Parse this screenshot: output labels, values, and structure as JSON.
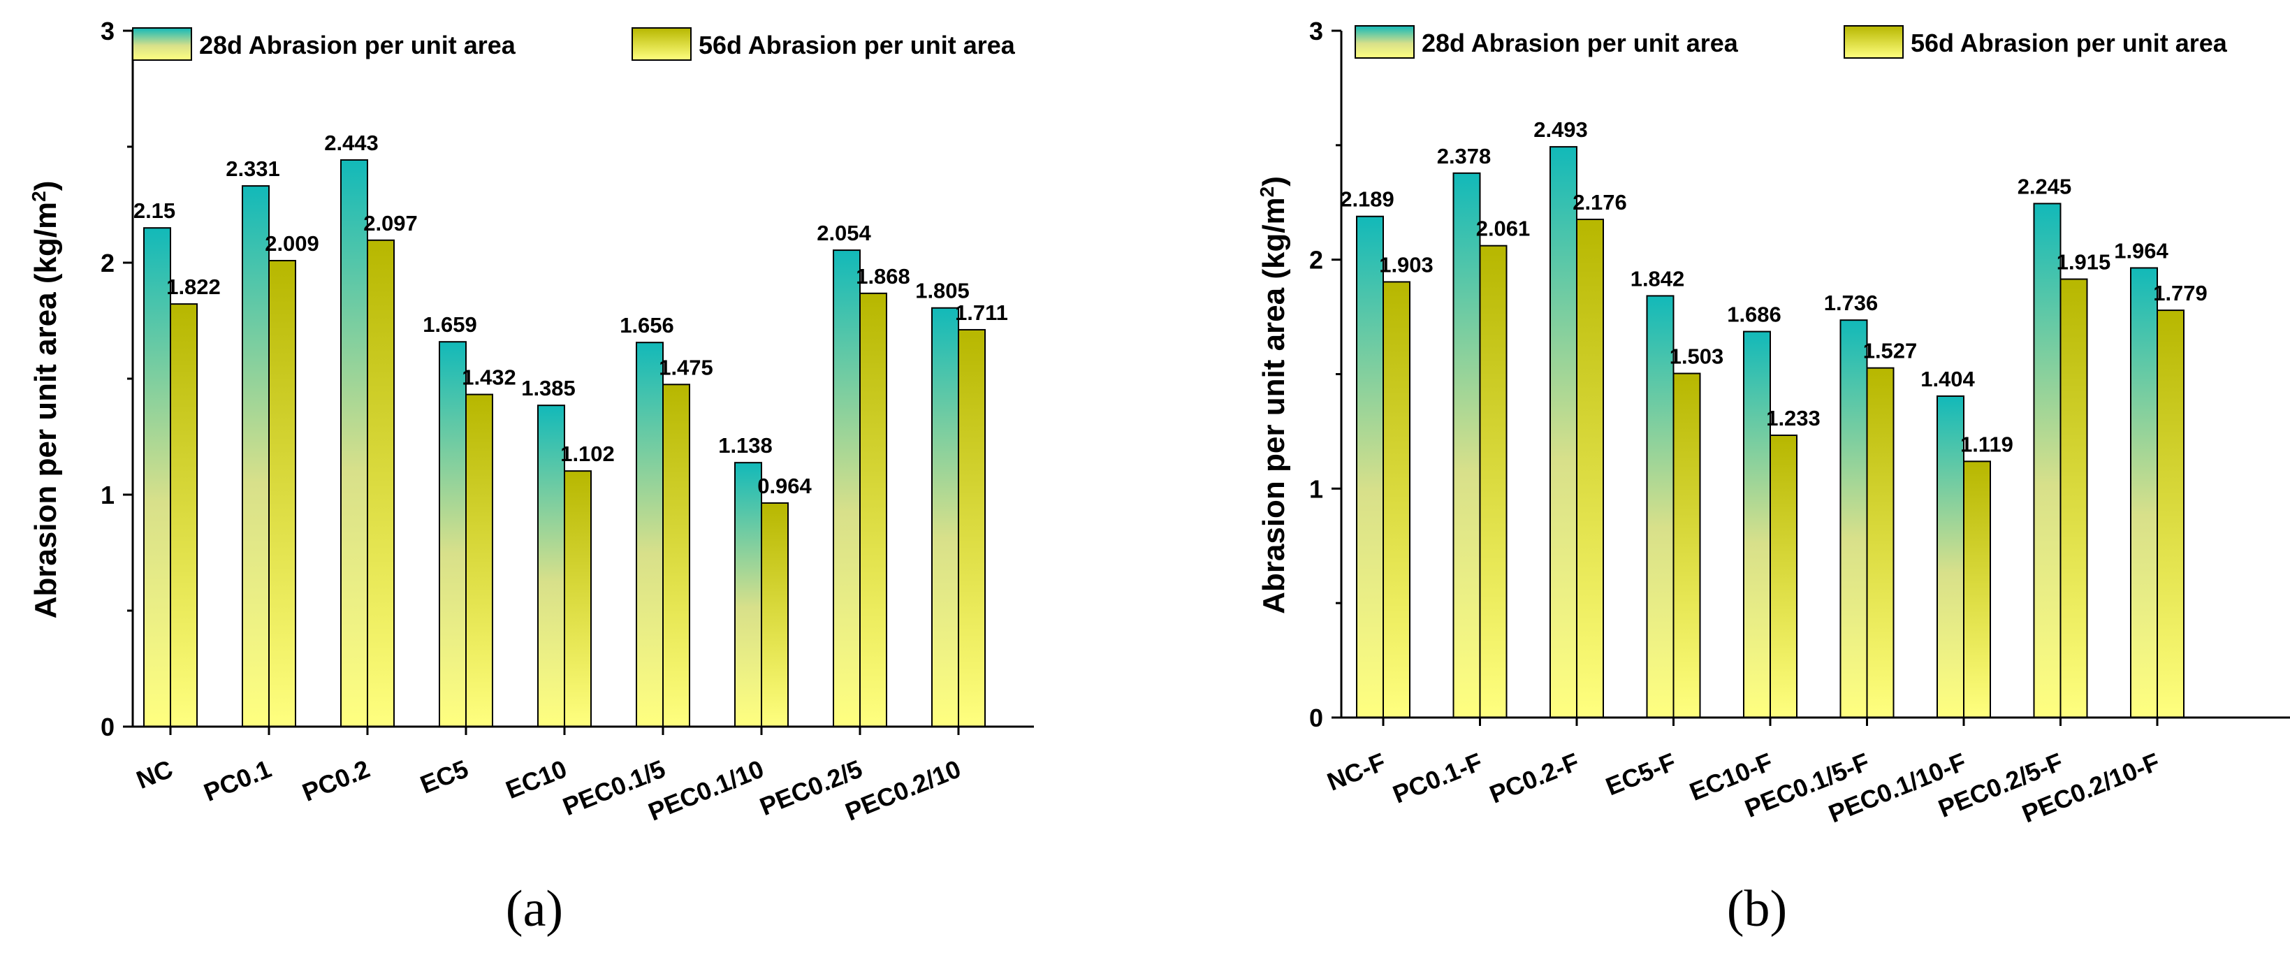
{
  "colors": {
    "series28_top": "#12b9b9",
    "series28_mid": "#d8e08a",
    "series28_bottom": "#ffff80",
    "series56_top": "#b7b700",
    "series56_bottom": "#ffff80",
    "axis": "#000000"
  },
  "chart_data": [
    {
      "type": "bar",
      "panel_label": "(a)",
      "ylabel": "Abrasion per unit area (kg/m",
      "ylabel_sup": "2",
      "ylabel_close": ")",
      "ylim": [
        0,
        3
      ],
      "yticks": [
        "0",
        "1",
        "2",
        "3"
      ],
      "legend_position": "top",
      "categories": [
        "NC",
        "PC0.1",
        "PC0.2",
        "EC5",
        "EC10",
        "PEC0.1/5",
        "PEC0.1/10",
        "PEC0.2/5",
        "PEC0.2/10"
      ],
      "series": [
        {
          "name": "28d Abrasion per unit area",
          "values": [
            2.15,
            2.331,
            2.443,
            1.659,
            1.385,
            1.656,
            1.138,
            2.054,
            1.805
          ],
          "labels": [
            "2.15",
            "2.331",
            "2.443",
            "1.659",
            "1.385",
            "1.656",
            "1.138",
            "2.054",
            "1.805"
          ]
        },
        {
          "name": "56d Abrasion per unit area",
          "values": [
            1.822,
            2.009,
            2.097,
            1.432,
            1.102,
            1.475,
            0.964,
            1.868,
            1.711
          ],
          "labels": [
            "1.822",
            "2.009",
            "2.097",
            "1.432",
            "1.102",
            "1.475",
            "0.964",
            "1.868",
            "1.711"
          ]
        }
      ]
    },
    {
      "type": "bar",
      "panel_label": "(b)",
      "ylabel": "Abrasion per unit area (kg/m",
      "ylabel_sup": "2",
      "ylabel_close": ")",
      "ylim": [
        0,
        3
      ],
      "yticks": [
        "0",
        "1",
        "2",
        "3"
      ],
      "legend_position": "top",
      "categories": [
        "NC-F",
        "PC0.1-F",
        "PC0.2-F",
        "EC5-F",
        "EC10-F",
        "PEC0.1/5-F",
        "PEC0.1/10-F",
        "PEC0.2/5-F",
        "PEC0.2/10-F"
      ],
      "series": [
        {
          "name": "28d Abrasion per unit area",
          "values": [
            2.189,
            2.378,
            2.493,
            1.842,
            1.686,
            1.736,
            1.404,
            2.245,
            1.964
          ],
          "labels": [
            "2.189",
            "2.378",
            "2.493",
            "1.842",
            "1.686",
            "1.736",
            "1.404",
            "2.245",
            "1.964"
          ]
        },
        {
          "name": "56d Abrasion per unit area",
          "values": [
            1.903,
            2.061,
            2.176,
            1.503,
            1.233,
            1.527,
            1.119,
            1.915,
            1.779
          ],
          "labels": [
            "1.903",
            "2.061",
            "2.176",
            "1.503",
            "1.233",
            "1.527",
            "1.119",
            "1.915",
            "1.779"
          ]
        }
      ]
    }
  ]
}
